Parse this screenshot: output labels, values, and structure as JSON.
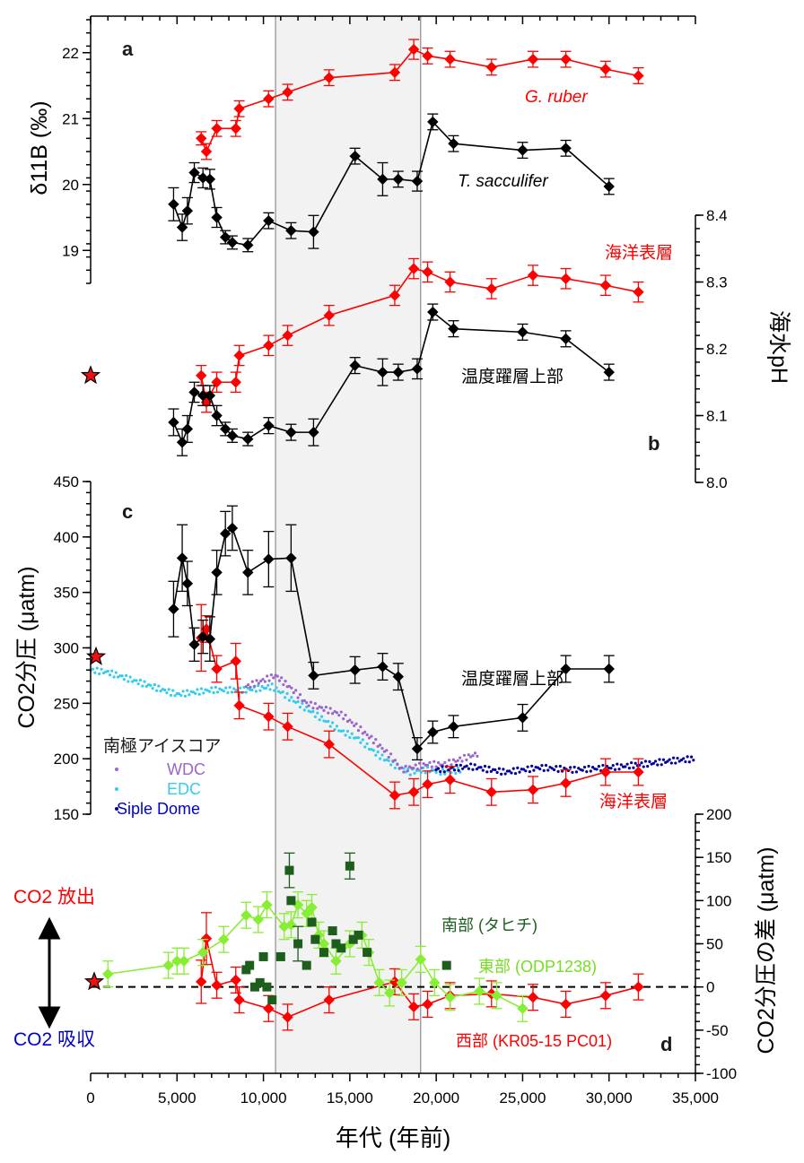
{
  "chart_data": [
    {
      "panel": "a",
      "type": "line",
      "ylabel": "δ11B (‰)",
      "ylim": [
        18.5,
        22.5
      ],
      "yticks": [
        19,
        20,
        21,
        22
      ],
      "series": [
        {
          "name": "G. ruber",
          "color": "#ff0000",
          "x": [
            6400,
            6700,
            7300,
            8400,
            8600,
            10300,
            11400,
            13800,
            17600,
            18700,
            19500,
            20800,
            23200,
            25600,
            27500,
            29800,
            31700
          ],
          "y": [
            20.7,
            20.5,
            20.85,
            20.85,
            21.15,
            21.3,
            21.4,
            21.62,
            21.7,
            22.05,
            21.95,
            21.9,
            21.78,
            21.9,
            21.9,
            21.75,
            21.65
          ],
          "err": [
            0.1,
            0.12,
            0.12,
            0.12,
            0.12,
            0.12,
            0.12,
            0.12,
            0.12,
            0.15,
            0.12,
            0.12,
            0.12,
            0.12,
            0.12,
            0.12,
            0.12
          ]
        },
        {
          "name": "T. sacculifer",
          "color": "#000000",
          "x": [
            4800,
            5300,
            5600,
            6000,
            6500,
            6900,
            7300,
            7800,
            8200,
            9100,
            10300,
            11600,
            12900,
            15300,
            16900,
            17800,
            18900,
            19800,
            21000,
            25000,
            27500,
            30000
          ],
          "y": [
            19.7,
            19.35,
            19.6,
            20.18,
            20.1,
            20.08,
            19.5,
            19.2,
            19.12,
            19.08,
            19.45,
            19.3,
            19.28,
            20.43,
            20.08,
            20.08,
            20.05,
            20.95,
            20.62,
            20.52,
            20.55,
            19.97
          ],
          "err": [
            0.25,
            0.2,
            0.2,
            0.15,
            0.15,
            0.15,
            0.15,
            0.1,
            0.1,
            0.1,
            0.12,
            0.12,
            0.25,
            0.12,
            0.25,
            0.12,
            0.15,
            0.12,
            0.12,
            0.12,
            0.12,
            0.12
          ]
        }
      ],
      "annotations": [
        "G. ruber",
        "T. sacculifer"
      ]
    },
    {
      "panel": "b",
      "type": "line",
      "ylabel": "海水pH",
      "ylim": [
        8.0,
        8.4
      ],
      "yticks": [
        8.0,
        8.1,
        8.2,
        8.3,
        8.4
      ],
      "modern_star": 8.16,
      "series": [
        {
          "name": "海洋表層",
          "color": "#ff0000",
          "x": [
            6400,
            6700,
            7300,
            8400,
            8600,
            10300,
            11400,
            13800,
            17600,
            18700,
            19500,
            20800,
            23200,
            25600,
            27500,
            29800,
            31700
          ],
          "y": [
            8.16,
            8.12,
            8.15,
            8.15,
            8.19,
            8.205,
            8.22,
            8.25,
            8.28,
            8.32,
            8.315,
            8.3,
            8.29,
            8.31,
            8.305,
            8.295,
            8.285
          ],
          "err": [
            0.015,
            0.015,
            0.015,
            0.015,
            0.015,
            0.015,
            0.015,
            0.015,
            0.015,
            0.015,
            0.015,
            0.015,
            0.015,
            0.015,
            0.015,
            0.015,
            0.015
          ]
        },
        {
          "name": "温度躍層上部",
          "color": "#000000",
          "x": [
            4800,
            5300,
            5600,
            6000,
            6500,
            6900,
            7300,
            7800,
            8200,
            9100,
            10300,
            11600,
            12900,
            15300,
            16900,
            17800,
            18900,
            19800,
            21000,
            25000,
            27500,
            30000
          ],
          "y": [
            8.09,
            8.06,
            8.08,
            8.135,
            8.13,
            8.13,
            8.1,
            8.08,
            8.07,
            8.065,
            8.085,
            8.075,
            8.075,
            8.175,
            8.165,
            8.165,
            8.17,
            8.255,
            8.23,
            8.225,
            8.215,
            8.165
          ],
          "err": [
            0.02,
            0.02,
            0.02,
            0.015,
            0.015,
            0.015,
            0.015,
            0.01,
            0.01,
            0.01,
            0.012,
            0.012,
            0.02,
            0.012,
            0.02,
            0.012,
            0.015,
            0.012,
            0.012,
            0.012,
            0.012,
            0.012
          ]
        }
      ],
      "annotations": [
        "海洋表層",
        "温度躍層上部"
      ]
    },
    {
      "panel": "c",
      "type": "line",
      "ylabel": "CO2分圧 (μatm)",
      "ylim": [
        150,
        450
      ],
      "yticks": [
        150,
        200,
        250,
        300,
        350,
        400,
        450
      ],
      "modern_star": 292,
      "series": [
        {
          "name": "温度躍層上部",
          "color": "#000000",
          "x": [
            4800,
            5300,
            5600,
            6000,
            6500,
            6900,
            7300,
            7800,
            8200,
            9100,
            10300,
            11600,
            12900,
            15300,
            16900,
            17800,
            18900,
            19800,
            21000,
            25000,
            27500,
            30000
          ],
          "y": [
            335,
            381,
            358,
            303,
            310,
            308,
            368,
            403,
            408,
            368,
            380,
            381,
            275,
            280,
            283,
            274,
            209,
            224,
            229,
            237,
            281,
            281
          ],
          "err": [
            25,
            30,
            20,
            15,
            15,
            20,
            20,
            20,
            20,
            20,
            25,
            30,
            12,
            12,
            12,
            12,
            10,
            10,
            10,
            12,
            12,
            12
          ]
        },
        {
          "name": "海洋表層",
          "color": "#ff0000",
          "x": [
            6400,
            6700,
            7300,
            8400,
            8600,
            10300,
            11400,
            13800,
            17600,
            18700,
            19500,
            20800,
            23200,
            25600,
            27500,
            29800,
            31700
          ],
          "y": [
            309,
            317,
            281,
            288,
            248,
            238,
            229,
            213,
            167,
            170,
            177,
            181,
            170,
            172,
            178,
            188,
            188
          ],
          "err": [
            30,
            12,
            12,
            16,
            12,
            12,
            12,
            12,
            12,
            12,
            12,
            12,
            12,
            12,
            12,
            12,
            12
          ]
        },
        {
          "name": "WDC",
          "color": "#9966cc",
          "x": [
            9000,
            10700,
            11500,
            12500,
            13500,
            14500,
            15500,
            16500,
            17500,
            18000,
            19500,
            20500,
            21500,
            22500
          ],
          "y": [
            265,
            275,
            265,
            250,
            245,
            240,
            228,
            215,
            200,
            190,
            195,
            195,
            200,
            205
          ]
        },
        {
          "name": "EDC",
          "color": "#33ccee",
          "x": [
            0,
            1000,
            3000,
            5000,
            7000,
            9000,
            10500,
            11500,
            12500,
            13500,
            14500,
            15500,
            16500,
            17500,
            18500,
            19500,
            20500,
            21500
          ],
          "y": [
            280,
            278,
            268,
            258,
            262,
            262,
            265,
            255,
            245,
            235,
            225,
            218,
            205,
            195,
            188,
            190,
            188,
            190
          ]
        },
        {
          "name": "Siple Dome",
          "color": "#000099",
          "x": [
            20000,
            22000,
            24000,
            26000,
            28000,
            30000,
            32000,
            33500,
            35000
          ],
          "y": [
            190,
            193,
            188,
            192,
            190,
            192,
            195,
            198,
            200
          ]
        }
      ],
      "legend_title": "南極アイスコア",
      "legend_entries": [
        "WDC",
        "EDC",
        "Siple Dome"
      ],
      "annotations": [
        "温度躍層上部",
        "海洋表層"
      ]
    },
    {
      "panel": "d",
      "type": "line",
      "ylabel": "CO2分圧の差 (μatm)",
      "ylim": [
        -100,
        200
      ],
      "yticks": [
        -100,
        -50,
        0,
        50,
        100,
        150,
        200
      ],
      "baseline": 0,
      "series": [
        {
          "name": "西部 (KR05-15 PC01)",
          "color": "#ff0000",
          "x": [
            6400,
            6700,
            7300,
            8400,
            8600,
            10300,
            11400,
            13800,
            17600,
            18700,
            19500,
            20800,
            23200,
            25600,
            27500,
            29800,
            31700
          ],
          "y": [
            6,
            56,
            2,
            8,
            -15,
            -25,
            -35,
            -15,
            6,
            -23,
            -20,
            -10,
            -8,
            -12,
            -20,
            -10,
            0
          ],
          "err": [
            25,
            30,
            15,
            15,
            15,
            15,
            15,
            15,
            15,
            15,
            15,
            15,
            15,
            15,
            15,
            15,
            15
          ]
        },
        {
          "name": "東部 (ODP1238)",
          "color": "#88ee33",
          "x": [
            1000,
            4500,
            5000,
            5400,
            6500,
            7700,
            9000,
            9700,
            10200,
            11200,
            11600,
            12000,
            12500,
            12800,
            13200,
            13500,
            14200,
            15000,
            15700,
            16100,
            16700,
            17300,
            18000,
            19100,
            19900,
            20800,
            22500,
            23500,
            25000
          ],
          "y": [
            15,
            25,
            30,
            30,
            40,
            55,
            83,
            78,
            95,
            70,
            72,
            95,
            85,
            92,
            60,
            50,
            30,
            50,
            60,
            40,
            5,
            -7,
            5,
            32,
            5,
            -12,
            -5,
            -10,
            -25
          ],
          "err": [
            15,
            15,
            15,
            15,
            15,
            15,
            15,
            15,
            15,
            15,
            15,
            15,
            15,
            15,
            15,
            15,
            15,
            15,
            15,
            15,
            15,
            15,
            15,
            15,
            15,
            15,
            15,
            15,
            15
          ]
        },
        {
          "name": "南部 (タヒチ)",
          "color": "#1d5e1d",
          "x": [
            9000,
            9200,
            9500,
            9800,
            10000,
            10200,
            10500,
            11000,
            11500,
            11600,
            12000,
            12500,
            12800,
            13000,
            13500,
            14000,
            14200,
            14500,
            15000,
            15200,
            15500,
            16000,
            20600
          ],
          "y": [
            20,
            25,
            0,
            5,
            35,
            0,
            -15,
            35,
            135,
            100,
            50,
            25,
            75,
            55,
            40,
            65,
            50,
            45,
            140,
            55,
            60,
            40,
            25
          ],
          "err": [
            0,
            0,
            0,
            0,
            0,
            0,
            0,
            0,
            20,
            0,
            20,
            0,
            0,
            0,
            0,
            0,
            0,
            0,
            15,
            0,
            0,
            0,
            0
          ]
        }
      ],
      "annotations": [
        "CO2 放出",
        "CO2 吸収"
      ]
    }
  ],
  "axes": {
    "xlabel": "年代 (年前)",
    "xlim": [
      0,
      35000
    ],
    "xticks": [
      0,
      5000,
      10000,
      15000,
      20000,
      25000,
      30000,
      35000
    ],
    "xtick_labels": [
      "0",
      "5,000",
      "10,000",
      "15,000",
      "20,000",
      "25,000",
      "30,000",
      "35,000"
    ],
    "shaded_interval": [
      10700,
      19100
    ]
  },
  "labels": {
    "panel_a": "a",
    "panel_b": "b",
    "panel_c": "c",
    "panel_d": "d",
    "ylabel_a": "δ11B (‰)",
    "ylabel_b": "海水pH",
    "ylabel_c": "CO2分圧 (μatm)",
    "ylabel_d": "CO2分圧の差 (μatm)",
    "ruber": "G. ruber",
    "sacculifer": "T. sacculifer",
    "surface": "海洋表層",
    "thermocline": "温度躍層上部",
    "ice_title": "南極アイスコア",
    "wdc": "WDC",
    "edc": "EDC",
    "siple": "Siple Dome",
    "south": "南部 (タヒチ)",
    "east": "東部 (ODP1238)",
    "west": "西部 (KR05-15 PC01)",
    "release": "CO2 放出",
    "uptake": "CO2 吸収"
  },
  "colors": {
    "red": "#ff0000",
    "black": "#000000",
    "wdc": "#9966cc",
    "edc": "#33ccee",
    "siple": "#000099",
    "south": "#1d5e1d",
    "east": "#88ee33",
    "release": "#ff0000",
    "uptake": "#0000cc",
    "shade": "#f2f2f2"
  }
}
